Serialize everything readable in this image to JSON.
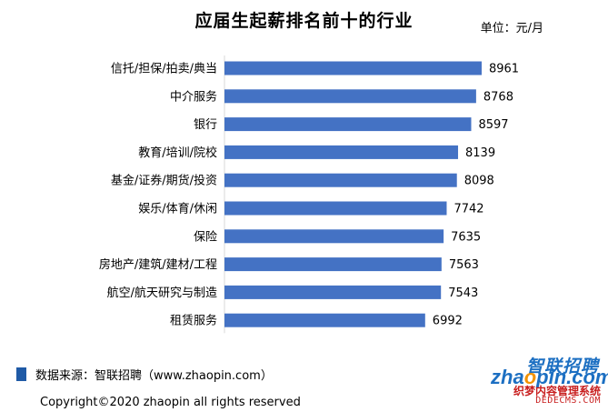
{
  "header": {
    "title": "应届生起薪排名前十的行业",
    "unit": "单位：元/月"
  },
  "chart_data": {
    "type": "bar",
    "orientation": "horizontal",
    "categories": [
      "信托/担保/拍卖/典当",
      "中介服务",
      "银行",
      "教育/培训/院校",
      "基金/证券/期货/投资",
      "娱乐/体育/休闲",
      "保险",
      "房地产/建筑/建材/工程",
      "航空/航天研究与制造",
      "租赁服务"
    ],
    "values": [
      8961,
      8768,
      8597,
      8139,
      8098,
      7742,
      7635,
      7563,
      7543,
      6992
    ],
    "title": "应届生起薪排名前十的行业",
    "xlabel": "",
    "ylabel": "",
    "xlim": [
      0,
      9500
    ],
    "grid": false,
    "legend": "none",
    "bar_color": "#4472c4"
  },
  "footer": {
    "source": "数据来源：智联招聘（www.zhaopin.com）",
    "copyright": "Copyright©2020  zhaopin all rights reserved"
  },
  "logo": {
    "cn": "智联招聘",
    "en_prefix": "zha",
    "en_highlight": "o",
    "en_suffix": "pin.com"
  },
  "watermark": {
    "cn": "织梦内容管理系统",
    "en": "DEDECMS.COM"
  },
  "colors": {
    "bar": "#4472c4",
    "source_marker": "#1f5aa6",
    "logo_blue": "#1c6fc2",
    "logo_orange": "#f39200",
    "watermark": "#c81e1e"
  }
}
